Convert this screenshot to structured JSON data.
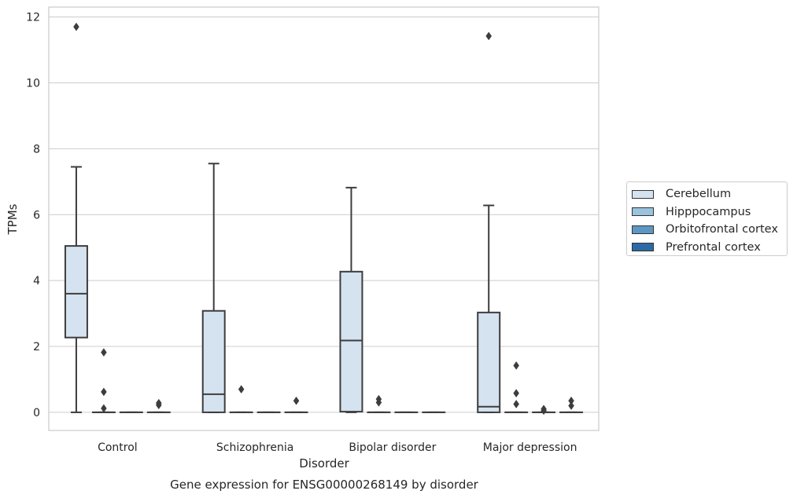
{
  "chart_data": {
    "type": "box",
    "title": "Gene expression for ENSG00000268149 by disorder",
    "xlabel": "Disorder",
    "ylabel": "TPMs",
    "ylim": [
      -0.55,
      12.3
    ],
    "yticks": [
      0,
      2,
      4,
      6,
      8,
      10,
      12
    ],
    "grid": true,
    "legend_position": "right",
    "categories": [
      "Control",
      "Schizophrenia",
      "Bipolar disorder",
      "Major depression"
    ],
    "series": [
      {
        "name": "Cerebellum",
        "color": "#d5e2f0",
        "boxes": [
          {
            "whislo": 0.0,
            "q1": 2.27,
            "med": 3.6,
            "q3": 5.05,
            "whishi": 7.45,
            "fliers": [
              11.7
            ]
          },
          {
            "whislo": 0.0,
            "q1": 0.0,
            "med": 0.55,
            "q3": 3.08,
            "whishi": 7.55,
            "fliers": []
          },
          {
            "whislo": 0.0,
            "q1": 0.02,
            "med": 2.18,
            "q3": 4.27,
            "whishi": 6.82,
            "fliers": []
          },
          {
            "whislo": 0.0,
            "q1": 0.0,
            "med": 0.17,
            "q3": 3.03,
            "whishi": 6.28,
            "fliers": [
              11.42
            ]
          }
        ]
      },
      {
        "name": "Hipppocampus",
        "color": "#9ac3dd",
        "boxes": [
          {
            "whislo": 0.0,
            "q1": 0.0,
            "med": 0.0,
            "q3": 0.0,
            "whishi": 0.0,
            "fliers": [
              1.82,
              0.62,
              0.12
            ]
          },
          {
            "whislo": 0.0,
            "q1": 0.0,
            "med": 0.0,
            "q3": 0.0,
            "whishi": 0.0,
            "fliers": [
              0.7
            ]
          },
          {
            "whislo": 0.0,
            "q1": 0.0,
            "med": 0.0,
            "q3": 0.0,
            "whishi": 0.0,
            "fliers": [
              0.4,
              0.3
            ]
          },
          {
            "whislo": 0.0,
            "q1": 0.0,
            "med": 0.0,
            "q3": 0.0,
            "whishi": 0.0,
            "fliers": [
              1.42,
              0.58,
              0.25
            ]
          }
        ]
      },
      {
        "name": "Orbitofrontal cortex",
        "color": "#5e97c4",
        "boxes": [
          {
            "whislo": 0.0,
            "q1": 0.0,
            "med": 0.0,
            "q3": 0.0,
            "whishi": 0.0,
            "fliers": []
          },
          {
            "whislo": 0.0,
            "q1": 0.0,
            "med": 0.0,
            "q3": 0.0,
            "whishi": 0.0,
            "fliers": []
          },
          {
            "whislo": 0.0,
            "q1": 0.0,
            "med": 0.0,
            "q3": 0.0,
            "whishi": 0.0,
            "fliers": []
          },
          {
            "whislo": 0.0,
            "q1": 0.0,
            "med": 0.0,
            "q3": 0.0,
            "whishi": 0.0,
            "fliers": [
              0.1,
              0.05
            ]
          }
        ]
      },
      {
        "name": "Prefrontal cortex",
        "color": "#2c6aa6",
        "boxes": [
          {
            "whislo": 0.0,
            "q1": 0.0,
            "med": 0.0,
            "q3": 0.0,
            "whishi": 0.0,
            "fliers": [
              0.28,
              0.22
            ]
          },
          {
            "whislo": 0.0,
            "q1": 0.0,
            "med": 0.0,
            "q3": 0.0,
            "whishi": 0.0,
            "fliers": [
              0.35
            ]
          },
          {
            "whislo": 0.0,
            "q1": 0.0,
            "med": 0.0,
            "q3": 0.0,
            "whishi": 0.0,
            "fliers": []
          },
          {
            "whislo": 0.0,
            "q1": 0.0,
            "med": 0.0,
            "q3": 0.0,
            "whishi": 0.0,
            "fliers": [
              0.35,
              0.2
            ]
          }
        ]
      }
    ]
  }
}
